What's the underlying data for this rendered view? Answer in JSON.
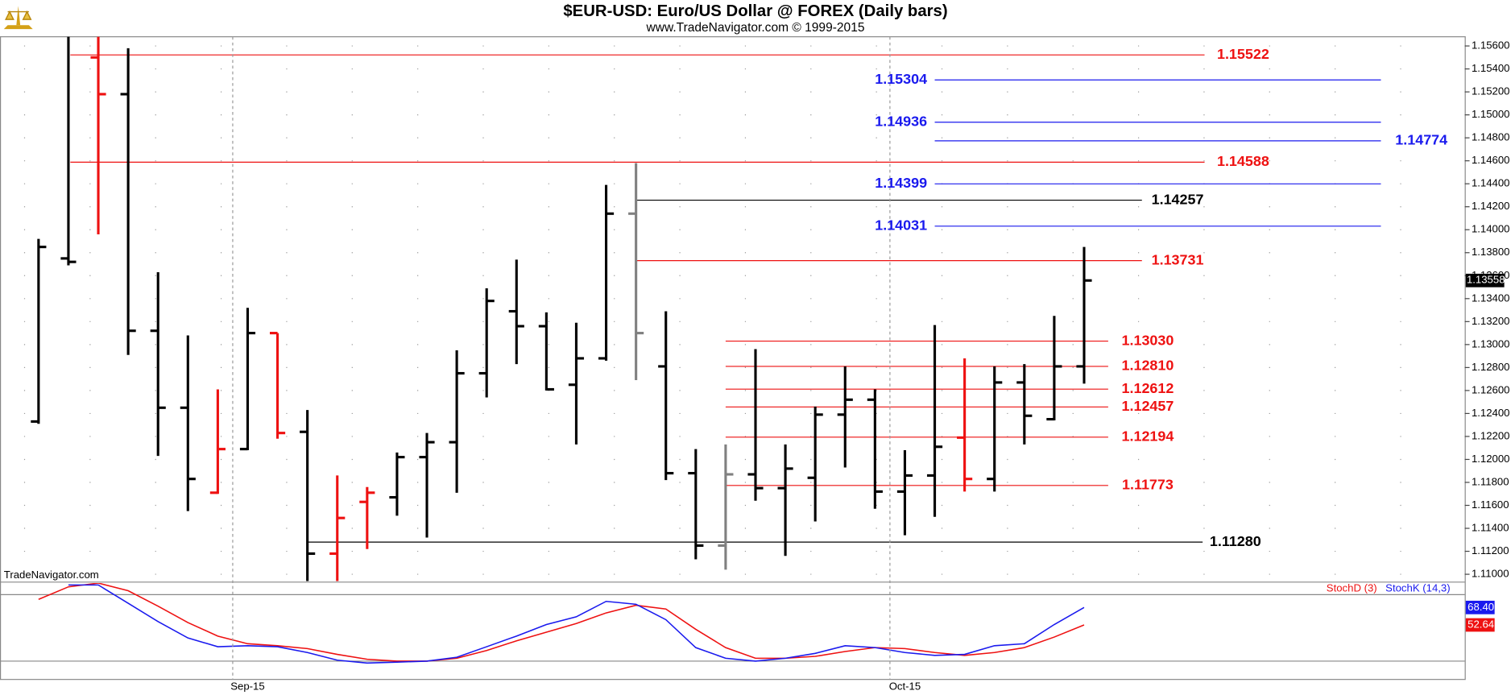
{
  "chart_data": [
    {
      "type": "ohlc",
      "title": "$EUR-USD:  Euro/US Dollar @ FOREX  (Daily bars)",
      "subtitle": "www.TradeNavigator.com © 1999-2015",
      "watermark": "TradeNavigator.com",
      "categories": [
        null,
        null,
        null,
        null,
        null,
        null,
        null,
        "Sep-15",
        null,
        null,
        null,
        null,
        null,
        null,
        null,
        null,
        null,
        null,
        null,
        null,
        null,
        null,
        null,
        null,
        null,
        null,
        null,
        null,
        null,
        "Oct-15",
        null,
        null,
        null,
        null,
        null,
        null
      ],
      "open": [
        1.1233,
        1.1375,
        1.155,
        1.1518,
        1.1312,
        1.1245,
        1.1171,
        1.1209,
        1.131,
        1.1224,
        1.1118,
        1.1163,
        1.1167,
        1.1202,
        1.1215,
        1.1275,
        1.1329,
        1.1316,
        1.1265,
        1.1288,
        1.1414,
        1.1281,
        1.1188,
        1.1125,
        1.1187,
        1.1175,
        1.1184,
        1.1239,
        1.1252,
        1.1172,
        1.1186,
        1.1219,
        1.1183,
        1.1267,
        1.1235,
        1.1281
      ],
      "high": [
        1.1392,
        1.1568,
        1.1568,
        1.1558,
        1.1363,
        1.1308,
        1.1261,
        1.1332,
        1.131,
        1.1243,
        1.1186,
        1.1176,
        1.1206,
        1.1223,
        1.1295,
        1.1349,
        1.1374,
        1.1328,
        1.1319,
        1.1439,
        1.1458,
        1.1329,
        1.1209,
        1.1213,
        1.1296,
        1.1213,
        1.1246,
        1.1281,
        1.1261,
        1.1208,
        1.1317,
        1.1288,
        1.1281,
        1.1283,
        1.1325,
        1.1385
      ],
      "low": [
        1.1231,
        1.1369,
        1.1396,
        1.1291,
        1.1203,
        1.1155,
        1.117,
        1.1208,
        1.1218,
        1.1094,
        1.1094,
        1.1122,
        1.1151,
        1.1132,
        1.1171,
        1.1254,
        1.1283,
        1.126,
        1.1213,
        1.1286,
        1.1269,
        1.1182,
        1.1113,
        1.1104,
        1.1164,
        1.1116,
        1.1146,
        1.1193,
        1.1157,
        1.1134,
        1.115,
        1.1172,
        1.1172,
        1.1213,
        1.1234,
        1.1266
      ],
      "close": [
        1.1385,
        1.1372,
        1.1518,
        1.1312,
        1.1245,
        1.1183,
        1.1209,
        1.131,
        1.1223,
        1.1118,
        1.1149,
        1.1171,
        1.1202,
        1.1215,
        1.1275,
        1.1338,
        1.1316,
        1.1261,
        1.1288,
        1.1414,
        1.131,
        1.1188,
        1.1125,
        1.1187,
        1.1175,
        1.1192,
        1.1239,
        1.1252,
        1.1172,
        1.1186,
        1.1211,
        1.1183,
        1.1267,
        1.1238,
        1.1281,
        1.13558
      ],
      "colors": [
        "#000000",
        "#000000",
        "#ee1111",
        "#000000",
        "#000000",
        "#000000",
        "#ee1111",
        "#000000",
        "#ee1111",
        "#000000",
        "#ee1111",
        "#ee1111",
        "#000000",
        "#000000",
        "#000000",
        "#000000",
        "#000000",
        "#000000",
        "#000000",
        "#000000",
        "#808080",
        "#000000",
        "#000000",
        "#808080",
        "#000000",
        "#000000",
        "#000000",
        "#000000",
        "#000000",
        "#000000",
        "#000000",
        "#ee1111",
        "#000000",
        "#000000",
        "#000000",
        "#000000"
      ],
      "ylim": [
        1.1094,
        1.1568
      ],
      "yticks": [
        {
          "value": 1.11,
          "label": "1.11000"
        },
        {
          "value": 1.112,
          "label": "1.11200"
        },
        {
          "value": 1.114,
          "label": "1.11400"
        },
        {
          "value": 1.116,
          "label": "1.11600"
        },
        {
          "value": 1.118,
          "label": "1.11800"
        },
        {
          "value": 1.12,
          "label": "1.12000"
        },
        {
          "value": 1.122,
          "label": "1.12200"
        },
        {
          "value": 1.124,
          "label": "1.12400"
        },
        {
          "value": 1.126,
          "label": "1.12600"
        },
        {
          "value": 1.128,
          "label": "1.12800"
        },
        {
          "value": 1.13,
          "label": "1.13000"
        },
        {
          "value": 1.132,
          "label": "1.13200"
        },
        {
          "value": 1.134,
          "label": "1.13400"
        },
        {
          "value": 1.136,
          "label": "1.13600"
        },
        {
          "value": 1.138,
          "label": "1.13800"
        },
        {
          "value": 1.14,
          "label": "1.14000"
        },
        {
          "value": 1.142,
          "label": "1.14200"
        },
        {
          "value": 1.144,
          "label": "1.14400"
        },
        {
          "value": 1.146,
          "label": "1.14600"
        },
        {
          "value": 1.148,
          "label": "1.14800"
        },
        {
          "value": 1.15,
          "label": "1.15000"
        },
        {
          "value": 1.152,
          "label": "1.15200"
        },
        {
          "value": 1.154,
          "label": "1.15400"
        },
        {
          "value": 1.156,
          "label": "1.15600"
        }
      ],
      "grid": true,
      "last_price": {
        "value": 1.13558,
        "label": "1.13558"
      },
      "levels": [
        {
          "value": 1.15522,
          "label": "1.15522",
          "color": "#ee1111"
        },
        {
          "value": 1.15304,
          "label": "1.15304",
          "color": "#1a1aee"
        },
        {
          "value": 1.14936,
          "label": "1.14936",
          "color": "#1a1aee"
        },
        {
          "value": 1.14774,
          "label": "1.14774",
          "color": "#1a1aee"
        },
        {
          "value": 1.14588,
          "label": "1.14588",
          "color": "#ee1111"
        },
        {
          "value": 1.14399,
          "label": "1.14399",
          "color": "#1a1aee"
        },
        {
          "value": 1.14257,
          "label": "1.14257",
          "color": "#000000"
        },
        {
          "value": 1.14031,
          "label": "1.14031",
          "color": "#1a1aee"
        },
        {
          "value": 1.13731,
          "label": "1.13731",
          "color": "#ee1111"
        },
        {
          "value": 1.1303,
          "label": "1.13030",
          "color": "#ee1111"
        },
        {
          "value": 1.1281,
          "label": "1.12810",
          "color": "#ee1111"
        },
        {
          "value": 1.12612,
          "label": "1.12612",
          "color": "#ee1111"
        },
        {
          "value": 1.12457,
          "label": "1.12457",
          "color": "#ee1111"
        },
        {
          "value": 1.12194,
          "label": "1.12194",
          "color": "#ee1111"
        },
        {
          "value": 1.11773,
          "label": "1.11773",
          "color": "#ee1111"
        },
        {
          "value": 1.1128,
          "label": "1.11280",
          "color": "#000000"
        }
      ]
    },
    {
      "type": "line",
      "ylim": [
        3.5,
        90.4
      ],
      "hlines": [
        20,
        80
      ],
      "series": [
        {
          "name": "StochD (3)",
          "color": "#ee1111",
          "last_label": "52.64",
          "values": [
            75.7,
            87.0,
            90.4,
            83.5,
            69.6,
            54.8,
            42.6,
            35.7,
            33.9,
            31.3,
            26.1,
            21.7,
            20.0,
            20.0,
            22.6,
            29.6,
            38.3,
            46.1,
            53.9,
            63.5,
            70.4,
            67.0,
            48.7,
            32.2,
            22.6,
            22.6,
            24.3,
            28.7,
            32.2,
            31.3,
            27.8,
            25.2,
            27.8,
            32.2,
            41.7,
            52.64
          ]
        },
        {
          "name": "StochK (14,3)",
          "color": "#1a1aee",
          "last_label": "68.40",
          "values": [
            null,
            88.7,
            88.7,
            72.2,
            55.7,
            40.9,
            33.0,
            33.9,
            33.0,
            27.8,
            20.9,
            18.3,
            19.1,
            20.0,
            23.5,
            33.0,
            42.6,
            53.0,
            60.0,
            73.9,
            71.3,
            57.4,
            32.2,
            22.6,
            20.0,
            22.6,
            27.0,
            33.9,
            32.2,
            27.8,
            25.2,
            26.1,
            33.9,
            35.7,
            53.0,
            68.4
          ]
        }
      ]
    }
  ]
}
